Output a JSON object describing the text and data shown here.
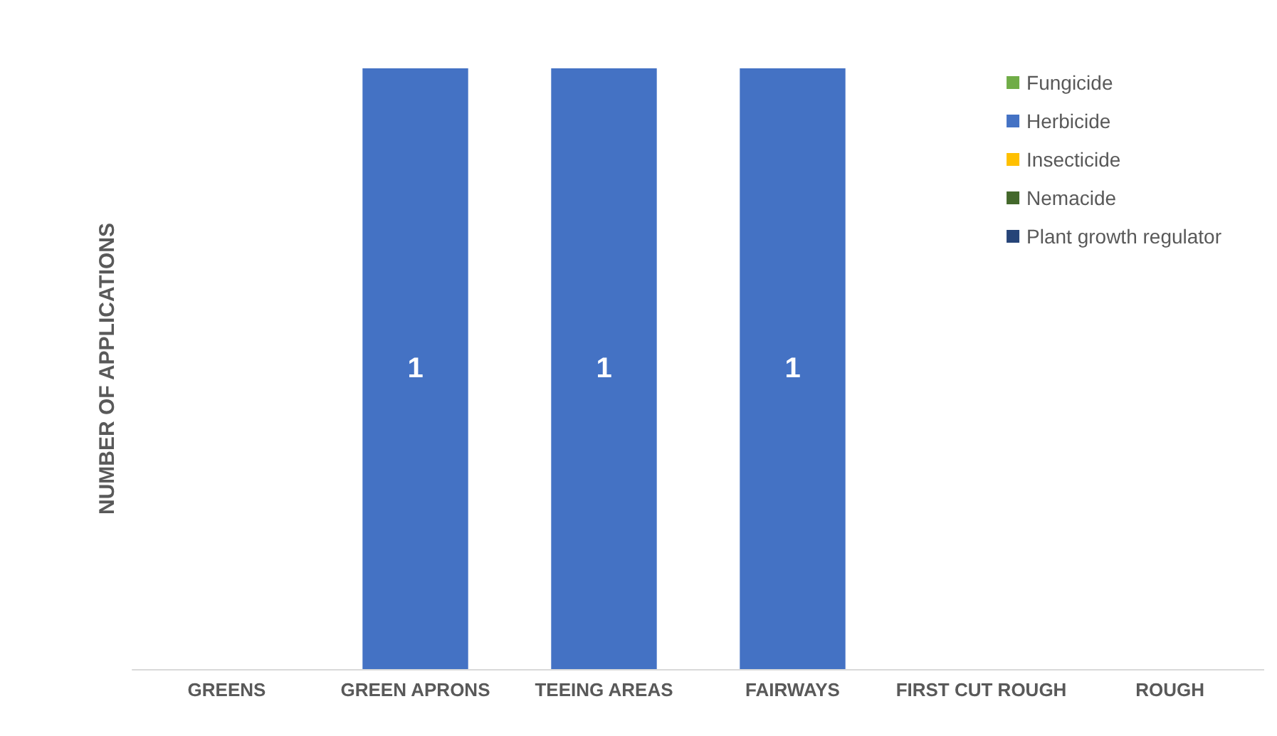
{
  "chart_data": {
    "type": "bar",
    "stacked": true,
    "ylabel": "NUMBER OF APPLICATIONS",
    "categories": [
      "GREENS",
      "GREEN APRONS",
      "TEEING AREAS",
      "FAIRWAYS",
      "FIRST CUT ROUGH",
      "ROUGH"
    ],
    "series": [
      {
        "name": "Fungicide",
        "color": "#70ad47",
        "values": [
          null,
          null,
          null,
          null,
          null,
          null
        ]
      },
      {
        "name": "Herbicide",
        "color": "#4472c4",
        "values": [
          null,
          1,
          1,
          1,
          null,
          null
        ]
      },
      {
        "name": "Insecticide",
        "color": "#ffc000",
        "values": [
          null,
          null,
          null,
          null,
          null,
          null
        ]
      },
      {
        "name": "Nemacide",
        "color": "#43682b",
        "values": [
          null,
          null,
          null,
          null,
          null,
          null
        ]
      },
      {
        "name": "Plant growth regulator",
        "color": "#264478",
        "values": [
          null,
          null,
          null,
          null,
          null,
          null
        ]
      }
    ],
    "ylim": [
      0,
      1
    ],
    "tick_labels": "x",
    "data_labels": true,
    "grid": false,
    "legend": "top right"
  }
}
